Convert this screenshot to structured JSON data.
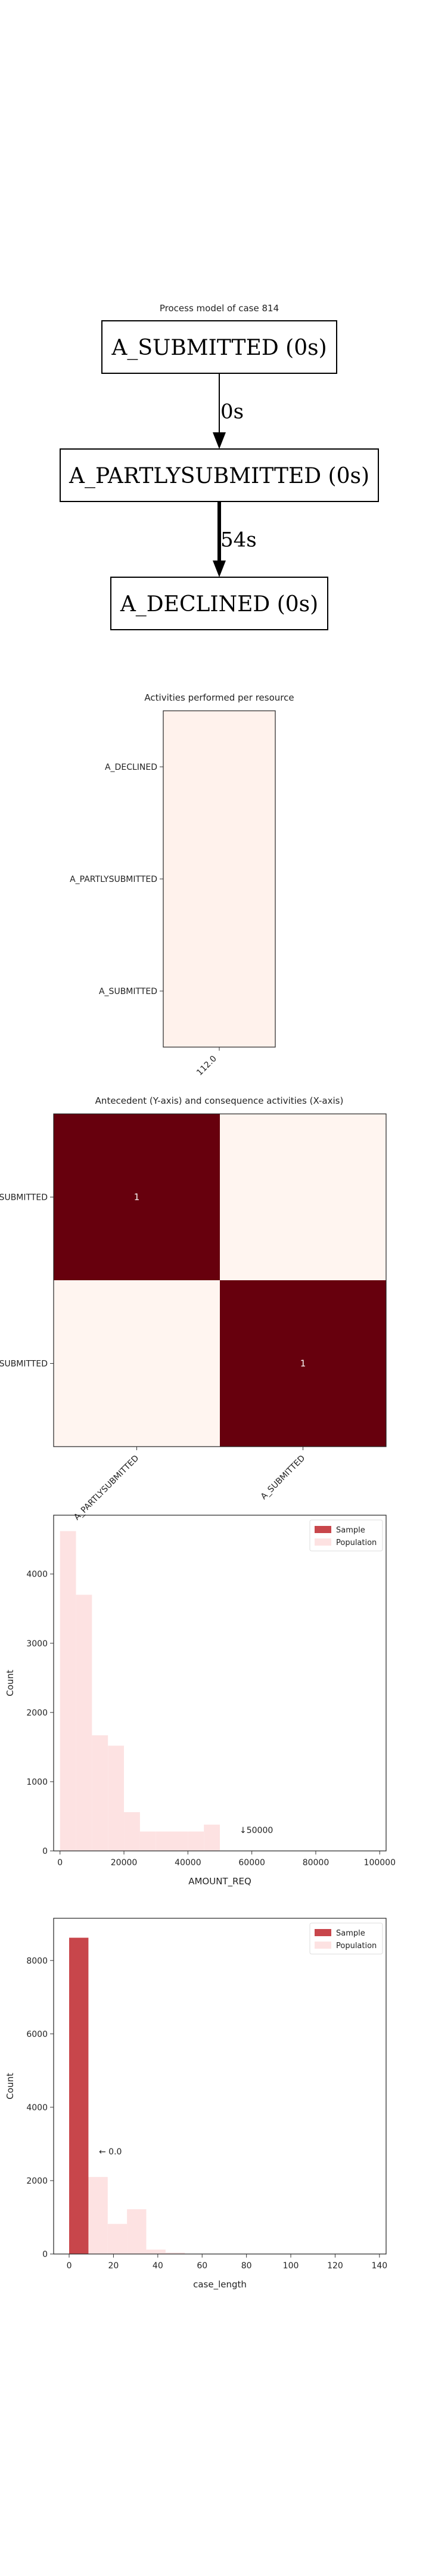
{
  "chart_data": [
    {
      "type": "diagram",
      "title": "Process model of case 814",
      "nodes": [
        "A_SUBMITTED (0s)",
        "A_PARTLYSUBMITTED (0s)",
        "A_DECLINED (0s)"
      ],
      "edges": [
        {
          "from": 0,
          "to": 1,
          "label": "0s"
        },
        {
          "from": 1,
          "to": 2,
          "label": "54s"
        }
      ]
    },
    {
      "type": "heatmap",
      "title": "Activities performed per resource",
      "rows": [
        "A_DECLINED",
        "A_PARTLYSUBMITTED",
        "A_SUBMITTED"
      ],
      "columns": [
        "112.0"
      ],
      "values": [
        [
          1
        ],
        [
          1
        ],
        [
          1
        ]
      ]
    },
    {
      "type": "heatmap",
      "title": "Antecedent (Y-axis) and consequence activities (X-axis)",
      "rows": [
        "A_SUBMITTED",
        "A_PARTLYSUBMITTED"
      ],
      "columns": [
        "A_PARTLYSUBMITTED",
        "A_SUBMITTED"
      ],
      "values": [
        [
          1,
          0
        ],
        [
          0,
          1
        ]
      ],
      "cell_labels": [
        [
          "1",
          ""
        ],
        [
          "",
          "1"
        ]
      ]
    },
    {
      "type": "bar",
      "xlabel": "AMOUNT_REQ",
      "ylabel": "Count",
      "xlim": [
        -2000,
        102000
      ],
      "ylim": [
        0,
        4850
      ],
      "xticks": [
        "0",
        "20000",
        "40000",
        "60000",
        "80000",
        "100000"
      ],
      "yticks": [
        "0",
        "1000",
        "2000",
        "3000",
        "4000"
      ],
      "bin_width": 5000,
      "series": [
        {
          "name": "Sample",
          "bins": [],
          "values": []
        },
        {
          "name": "Population",
          "bins": [
            0,
            5000,
            10000,
            15000,
            20000,
            25000,
            30000,
            35000,
            40000,
            45000,
            50000
          ],
          "values": [
            4620,
            3700,
            1670,
            1520,
            560,
            280,
            280,
            280,
            280,
            380,
            0
          ]
        }
      ],
      "annotation": "↓50000",
      "legend": "top-right"
    },
    {
      "type": "bar",
      "xlabel": "case_length",
      "ylabel": "Count",
      "xlim": [
        -7,
        143
      ],
      "ylim": [
        0,
        9150
      ],
      "xticks": [
        "0",
        "20",
        "40",
        "60",
        "80",
        "100",
        "120",
        "140"
      ],
      "yticks": [
        "0",
        "2000",
        "4000",
        "6000",
        "8000"
      ],
      "bin_width": 8.7,
      "series": [
        {
          "name": "Sample",
          "bins": [
            0
          ],
          "values": [
            8620
          ]
        },
        {
          "name": "Population",
          "bins": [
            0,
            8.7,
            17.4,
            26.1,
            34.8,
            43.5
          ],
          "values": [
            8620,
            2100,
            820,
            1220,
            120,
            40
          ]
        }
      ],
      "annotation": "← 0.0",
      "legend": "top-right"
    }
  ],
  "colors": {
    "sample": "#c8464b",
    "population": "#fde2e2",
    "heat_high": "#67000d",
    "heat_low": "#fff5f0",
    "heat_single": "#fff2ec"
  }
}
